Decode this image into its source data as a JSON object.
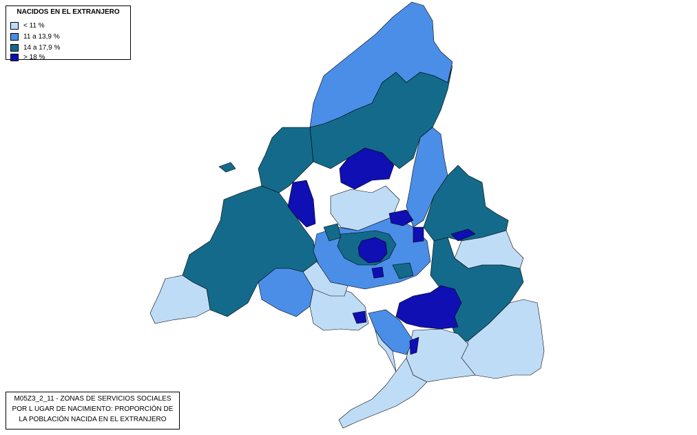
{
  "legend": {
    "title": "NACIDOS EN EL EXTRANJERO",
    "items": [
      {
        "label": "< 11 %",
        "color": "#bfdcf7"
      },
      {
        "label": "11 a 13,9 %",
        "color": "#4a8ee8"
      },
      {
        "label": "14 a 17,9 %",
        "color": "#146a8a"
      },
      {
        "label": "> 18 %",
        "color": "#0f0fb3"
      }
    ]
  },
  "caption": {
    "line1": "M05Z3_2_11 - ZONAS DE SERVICIOS SOCIALES",
    "line2": "POR L UGAR DE NACIMIENTO: PROPORCIÓN DE",
    "line3": "LA POBLACIÓN NACIDA EN EL EXTRANJERO"
  },
  "colors": {
    "lt11": "#bfdcf7",
    "c11_139": "#4a8ee8",
    "c14_179": "#146a8a",
    "gt18": "#0f0fb3",
    "border": "#000000"
  }
}
